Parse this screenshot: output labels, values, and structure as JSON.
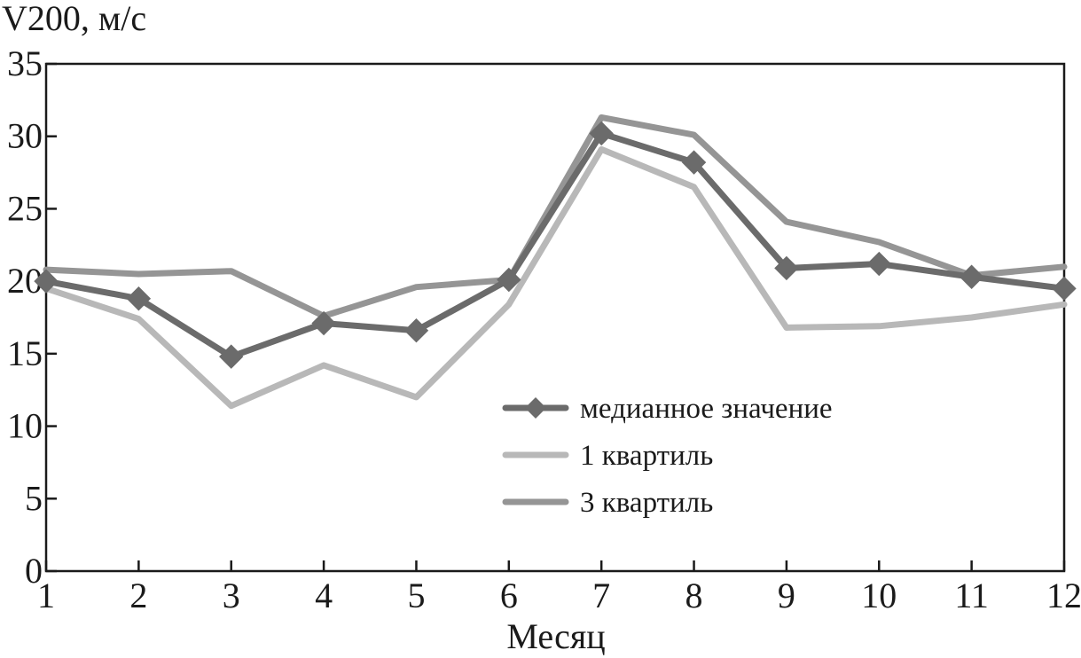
{
  "chart_data": {
    "type": "line",
    "ylabel": "V200, м/с",
    "xlabel": "Месяц",
    "ylim": [
      0,
      35
    ],
    "yticks": [
      "0",
      "5",
      "10",
      "15",
      "20",
      "25",
      "30",
      "35"
    ],
    "x": [
      "1",
      "2",
      "3",
      "4",
      "5",
      "6",
      "7",
      "8",
      "9",
      "10",
      "11",
      "12"
    ],
    "grid": false,
    "legend_position": "center-right",
    "series": [
      {
        "name": "медианное значение",
        "color": "#6b6b6b",
        "marker": "diamond",
        "values": [
          20.0,
          18.8,
          14.8,
          17.1,
          16.6,
          20.1,
          30.2,
          28.2,
          20.9,
          21.2,
          20.3,
          19.5
        ]
      },
      {
        "name": "1 квартиль",
        "color": "#b8b8b8",
        "marker": "none",
        "values": [
          19.5,
          17.4,
          11.4,
          14.2,
          12.0,
          18.4,
          29.1,
          26.5,
          16.8,
          16.9,
          17.5,
          18.4
        ]
      },
      {
        "name": "3 квартиль",
        "color": "#959595",
        "marker": "none",
        "values": [
          20.8,
          20.5,
          20.7,
          17.6,
          19.6,
          20.1,
          31.3,
          30.1,
          24.1,
          22.7,
          20.4,
          21.0
        ]
      }
    ]
  }
}
